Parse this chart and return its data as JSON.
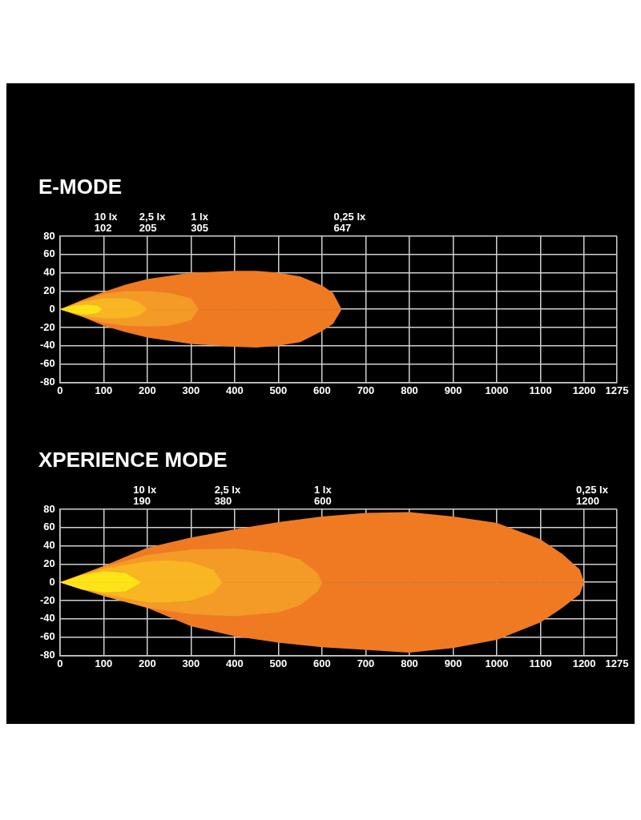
{
  "chart_data": [
    {
      "type": "area",
      "title": "E-MODE",
      "xlim": [
        0,
        1275
      ],
      "xticks": [
        0,
        100,
        200,
        300,
        400,
        500,
        600,
        700,
        800,
        900,
        1000,
        1100,
        1200,
        1275
      ],
      "ylim": [
        -80,
        80
      ],
      "yticks": [
        -80,
        -60,
        -40,
        -20,
        0,
        20,
        40,
        60,
        80
      ],
      "grid": true,
      "annotations": [
        "10 lx\n102",
        "2,5 lx\n205",
        "1 lx\n305",
        "0,25 lx\n647"
      ],
      "series": [
        {
          "color": "#ef7a22",
          "x": [
            0,
            50,
            100,
            150,
            200,
            300,
            400,
            450,
            500,
            550,
            600,
            625,
            645
          ],
          "values": [
            0,
            10,
            19,
            27,
            33,
            40,
            42,
            42,
            40,
            36,
            26,
            18,
            0
          ]
        },
        {
          "color": "#ef7a22",
          "x": [
            0,
            50,
            100,
            150,
            200,
            300,
            400,
            450,
            500,
            550,
            600,
            625,
            645
          ],
          "values": [
            0,
            -8,
            -18,
            -25,
            -31,
            -38,
            -41,
            -42,
            -40,
            -36,
            -24,
            -16,
            0
          ]
        },
        {
          "color": "#f49a26",
          "x": [
            0,
            50,
            100,
            150,
            200,
            250,
            300,
            318
          ],
          "values": [
            0,
            9,
            17,
            20,
            20,
            18,
            12,
            0
          ]
        },
        {
          "color": "#f49a26",
          "x": [
            0,
            50,
            100,
            150,
            200,
            250,
            300,
            318
          ],
          "values": [
            0,
            -8,
            -15,
            -18,
            -19,
            -18,
            -12,
            0
          ]
        },
        {
          "color": "#f8b622",
          "x": [
            0,
            50,
            100,
            150,
            180,
            200
          ],
          "values": [
            0,
            8,
            12,
            12,
            8,
            0
          ]
        },
        {
          "color": "#f8b622",
          "x": [
            0,
            50,
            100,
            150,
            180,
            200
          ],
          "values": [
            0,
            -7,
            -10,
            -10,
            -7,
            0
          ]
        },
        {
          "color": "#fde418",
          "x": [
            0,
            30,
            60,
            85,
            97
          ],
          "values": [
            0,
            4,
            5,
            4,
            0
          ]
        },
        {
          "color": "#fde418",
          "x": [
            0,
            30,
            60,
            85,
            97
          ],
          "values": [
            0,
            -4,
            -6,
            -4,
            0
          ]
        }
      ]
    },
    {
      "type": "area",
      "title": "XPERIENCE MODE",
      "xlim": [
        0,
        1275
      ],
      "xticks": [
        0,
        100,
        200,
        300,
        400,
        500,
        600,
        700,
        800,
        900,
        1000,
        1100,
        1200,
        1275
      ],
      "ylim": [
        -80,
        80
      ],
      "yticks": [
        -80,
        -60,
        -40,
        -20,
        0,
        20,
        40,
        60,
        80
      ],
      "grid": true,
      "annotations": [
        "10 lx\n190",
        "2,5 lx\n380",
        "1 lx\n600",
        "0,25 lx\n1200"
      ],
      "series": [
        {
          "color": "#ef7a22",
          "x": [
            0,
            100,
            200,
            300,
            400,
            500,
            600,
            700,
            800,
            900,
            1000,
            1100,
            1150,
            1190,
            1200
          ],
          "values": [
            0,
            18,
            38,
            49,
            58,
            66,
            72,
            76,
            77,
            72,
            65,
            47,
            31,
            14,
            0
          ]
        },
        {
          "color": "#ef7a22",
          "x": [
            0,
            100,
            200,
            300,
            400,
            500,
            600,
            700,
            800,
            900,
            1000,
            1100,
            1150,
            1190,
            1200
          ],
          "values": [
            0,
            -15,
            -28,
            -48,
            -59,
            -66,
            -71,
            -74,
            -77,
            -72,
            -63,
            -44,
            -28,
            -13,
            0
          ]
        },
        {
          "color": "#f49a26",
          "x": [
            0,
            100,
            200,
            300,
            400,
            500,
            550,
            590,
            600
          ],
          "values": [
            0,
            17,
            30,
            36,
            37,
            32,
            25,
            10,
            0
          ]
        },
        {
          "color": "#f49a26",
          "x": [
            0,
            100,
            200,
            300,
            400,
            500,
            550,
            590,
            600
          ],
          "values": [
            0,
            -15,
            -28,
            -35,
            -37,
            -33,
            -25,
            -10,
            0
          ]
        },
        {
          "color": "#f8b622",
          "x": [
            0,
            100,
            200,
            250,
            300,
            350,
            372
          ],
          "values": [
            0,
            15,
            23,
            24,
            22,
            14,
            0
          ]
        },
        {
          "color": "#f8b622",
          "x": [
            0,
            100,
            200,
            250,
            300,
            350,
            372
          ],
          "values": [
            0,
            -13,
            -22,
            -22,
            -20,
            -12,
            0
          ]
        },
        {
          "color": "#fde418",
          "x": [
            0,
            50,
            100,
            150,
            186
          ],
          "values": [
            0,
            8,
            12,
            10,
            0
          ]
        },
        {
          "color": "#fde418",
          "x": [
            0,
            50,
            100,
            150,
            186
          ],
          "values": [
            0,
            -8,
            -11,
            -10,
            0
          ]
        }
      ]
    }
  ]
}
